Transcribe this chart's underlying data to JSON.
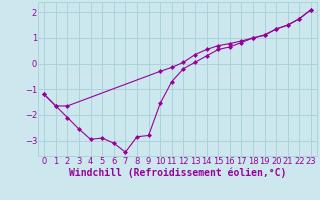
{
  "xlabel": "Windchill (Refroidissement éolien,°C)",
  "bg_color": "#cce8ee",
  "grid_color": "#aad4da",
  "line_color": "#990099",
  "marker_color": "#990099",
  "xlim": [
    -0.5,
    23.5
  ],
  "ylim": [
    -3.6,
    2.4
  ],
  "yticks": [
    -3,
    -2,
    -1,
    0,
    1,
    2
  ],
  "xticks": [
    0,
    1,
    2,
    3,
    4,
    5,
    6,
    7,
    8,
    9,
    10,
    11,
    12,
    13,
    14,
    15,
    16,
    17,
    18,
    19,
    20,
    21,
    22,
    23
  ],
  "series1_x": [
    0,
    1,
    2,
    3,
    4,
    5,
    6,
    7,
    8,
    9,
    10,
    11,
    12,
    13,
    14,
    15,
    16,
    17,
    18,
    19,
    20,
    21,
    22,
    23
  ],
  "series1_y": [
    -1.2,
    -1.65,
    -2.1,
    -2.55,
    -2.95,
    -2.9,
    -3.1,
    -3.45,
    -2.85,
    -2.8,
    -1.55,
    -0.7,
    -0.2,
    0.05,
    0.3,
    0.55,
    0.65,
    0.82,
    1.0,
    1.1,
    1.35,
    1.5,
    1.75,
    2.1
  ],
  "series2_x": [
    0,
    1,
    2,
    10,
    11,
    12,
    13,
    14,
    15,
    16,
    17,
    18,
    19,
    20,
    21,
    22,
    23
  ],
  "series2_y": [
    -1.2,
    -1.65,
    -1.65,
    -0.3,
    -0.15,
    0.05,
    0.35,
    0.55,
    0.7,
    0.78,
    0.88,
    1.0,
    1.12,
    1.35,
    1.5,
    1.75,
    2.1
  ],
  "xlabel_fontsize": 7,
  "tick_fontsize": 6
}
